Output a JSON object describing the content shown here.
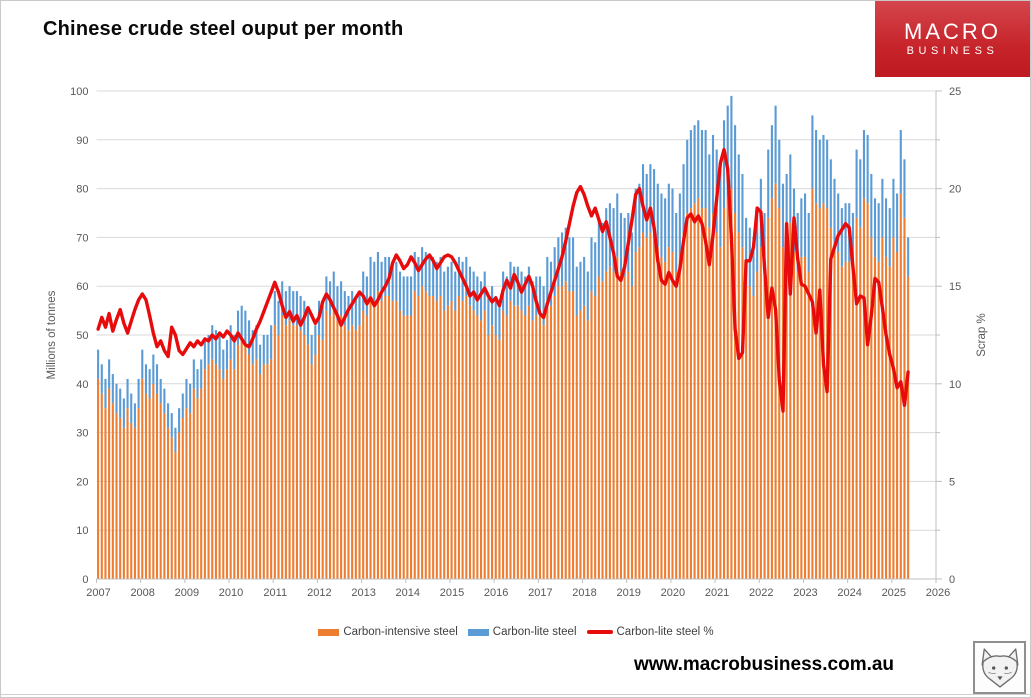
{
  "title": "Chinese crude steel ouput per month",
  "logo": {
    "line1": "MACRO",
    "line2": "BUSINESS",
    "bg_color": "#c6242a"
  },
  "footer": {
    "website": "www.macrobusiness.com.au",
    "mascot_icon": "fox-head"
  },
  "colors": {
    "intensive": "#ED7D31",
    "lite": "#5B9BD5",
    "scrap_line": "#E80B0B",
    "gridline": "#D9D9D9",
    "axis_line": "#BFBFBF",
    "tick_text": "#595959"
  },
  "chart_data": {
    "type": "bar",
    "subtype": "stacked monthly bars with line on secondary axis",
    "title": "Chinese crude steel ouput per month",
    "grid": "horizontal gridlines on",
    "legend_position": "bottom center",
    "left_axis": {
      "label": "Millions of tonnes",
      "range": [
        0,
        100
      ],
      "ticks": [
        0,
        10,
        20,
        30,
        40,
        50,
        60,
        70,
        80,
        90,
        100
      ]
    },
    "right_axis": {
      "label": "Scrap %",
      "range": [
        0,
        25
      ],
      "ticks": [
        0,
        5,
        10,
        15,
        20,
        25
      ],
      "minor_tick_step": 2.5
    },
    "x_axis": {
      "year_labels": [
        2007,
        2008,
        2009,
        2010,
        2011,
        2012,
        2013,
        2014,
        2015,
        2016,
        2017,
        2018,
        2019,
        2020,
        2021,
        2022,
        2023,
        2024,
        2025,
        2026
      ]
    },
    "legend": [
      {
        "label": "Carbon-intensive steel",
        "type": "bar",
        "color_key": "intensive"
      },
      {
        "label": "Carbon-lite steel",
        "type": "bar",
        "color_key": "lite"
      },
      {
        "label": "Carbon-lite steel %",
        "type": "line",
        "color_key": "scrap_line"
      }
    ],
    "start_month": "2007-01",
    "units": {
      "bars": "millions of tonnes (left axis)",
      "scrap_pct": "percent (right axis)"
    },
    "monthly_by_year": [
      {
        "year": 2007,
        "intensive": [
          41,
          38,
          35,
          39,
          36,
          34,
          33,
          31,
          35,
          32,
          31,
          35
        ],
        "lite": [
          6,
          6,
          6,
          6,
          6,
          6,
          6,
          6,
          6,
          6,
          5,
          6
        ],
        "scrap_pct": [
          12.8,
          13.4,
          12.9,
          13.6,
          12.7,
          13.3,
          13.8,
          13.1,
          12.6,
          13.2,
          13.8,
          14.3
        ]
      },
      {
        "year": 2008,
        "intensive": [
          41,
          38,
          37,
          40,
          38,
          36,
          34,
          31,
          29,
          26,
          30,
          33
        ],
        "lite": [
          6,
          6,
          6,
          6,
          6,
          5,
          5,
          5,
          5,
          5,
          5,
          5
        ],
        "scrap_pct": [
          14.6,
          14.3,
          13.5,
          12.6,
          11.9,
          12.2,
          11.7,
          11.4,
          12.9,
          12.5,
          11.7,
          11.5
        ]
      },
      {
        "year": 2009,
        "intensive": [
          35,
          34,
          39,
          37,
          39,
          43,
          44,
          45,
          44,
          43,
          41,
          43
        ],
        "lite": [
          6,
          6,
          6,
          6,
          6,
          6,
          6,
          7,
          7,
          7,
          6,
          6
        ],
        "scrap_pct": [
          11.8,
          12.1,
          11.9,
          12.2,
          12.0,
          12.3,
          12.2,
          12.5,
          12.3,
          12.6,
          12.4,
          12.7
        ]
      },
      {
        "year": 2010,
        "intensive": [
          45,
          43,
          48,
          49,
          48,
          46,
          44,
          45,
          42,
          44,
          44,
          45
        ],
        "lite": [
          7,
          7,
          7,
          7,
          7,
          7,
          7,
          7,
          6,
          6,
          6,
          7
        ],
        "scrap_pct": [
          12.5,
          12.2,
          12.6,
          12.3,
          12.0,
          11.9,
          12.3,
          12.8,
          13.2,
          13.7,
          14.2,
          14.7
        ]
      },
      {
        "year": 2011,
        "intensive": [
          52,
          50,
          54,
          52,
          53,
          52,
          52,
          51,
          50,
          48,
          44,
          46
        ],
        "lite": [
          7,
          7,
          7,
          7,
          7,
          7,
          7,
          7,
          7,
          7,
          6,
          6
        ],
        "scrap_pct": [
          15.2,
          14.7,
          14.0,
          13.4,
          13.7,
          13.2,
          13.5,
          13.0,
          13.4,
          13.9,
          13.5,
          13.1
        ]
      },
      {
        "year": 2012,
        "intensive": [
          50,
          49,
          55,
          54,
          56,
          53,
          54,
          52,
          51,
          52,
          51,
          52
        ],
        "lite": [
          7,
          7,
          7,
          7,
          7,
          7,
          7,
          7,
          7,
          7,
          7,
          7
        ],
        "scrap_pct": [
          13.4,
          14.2,
          14.6,
          14.3,
          13.9,
          13.5,
          13.0,
          13.4,
          13.8,
          14.1,
          14.4,
          14.7
        ]
      },
      {
        "year": 2013,
        "intensive": [
          55,
          54,
          58,
          57,
          59,
          57,
          58,
          58,
          57,
          57,
          55,
          54
        ],
        "lite": [
          8,
          8,
          8,
          8,
          8,
          8,
          8,
          8,
          8,
          8,
          8,
          8
        ],
        "scrap_pct": [
          14.5,
          14.1,
          14.4,
          14.0,
          14.3,
          14.7,
          15.0,
          15.4,
          16.2,
          16.6,
          16.3,
          15.9
        ]
      },
      {
        "year": 2014,
        "intensive": [
          54,
          54,
          59,
          58,
          60,
          59,
          58,
          58,
          57,
          58,
          55,
          56
        ],
        "lite": [
          8,
          8,
          8,
          8,
          8,
          8,
          8,
          8,
          8,
          8,
          8,
          8
        ],
        "scrap_pct": [
          16.1,
          16.5,
          16.2,
          15.8,
          16.1,
          16.4,
          16.6,
          16.3,
          15.9,
          16.2,
          16.5,
          16.6
        ]
      },
      {
        "year": 2015,
        "intensive": [
          57,
          55,
          58,
          57,
          58,
          56,
          55,
          54,
          53,
          55,
          50,
          52
        ],
        "lite": [
          8,
          8,
          8,
          8,
          8,
          8,
          8,
          8,
          8,
          8,
          8,
          8
        ],
        "scrap_pct": [
          16.5,
          16.2,
          15.8,
          15.4,
          15.0,
          14.5,
          14.7,
          14.3,
          14.6,
          14.9,
          14.5,
          14.2
        ]
      },
      {
        "year": 2016,
        "intensive": [
          50,
          49,
          55,
          54,
          57,
          56,
          56,
          55,
          54,
          56,
          53,
          54
        ],
        "lite": [
          8,
          8,
          8,
          8,
          8,
          8,
          8,
          8,
          8,
          8,
          8,
          8
        ],
        "scrap_pct": [
          14.4,
          14.0,
          14.8,
          15.3,
          14.9,
          15.6,
          15.2,
          14.7,
          15.1,
          15.5,
          15.0,
          14.2
        ]
      },
      {
        "year": 2017,
        "intensive": [
          54,
          52,
          57,
          56,
          58,
          60,
          60,
          61,
          59,
          59,
          54,
          55
        ],
        "lite": [
          8,
          8,
          9,
          9,
          10,
          10,
          11,
          11,
          11,
          11,
          10,
          10
        ],
        "scrap_pct": [
          13.6,
          13.4,
          14.1,
          14.7,
          15.3,
          15.9,
          16.5,
          17.3,
          18.2,
          19.1,
          19.8,
          20.1
        ]
      },
      {
        "year": 2018,
        "intensive": [
          56,
          53,
          59,
          58,
          62,
          61,
          63,
          64,
          63,
          66,
          63,
          62
        ],
        "lite": [
          10,
          10,
          11,
          11,
          12,
          12,
          13,
          13,
          13,
          13,
          12,
          12
        ],
        "scrap_pct": [
          19.7,
          19.1,
          18.6,
          19.0,
          18.4,
          17.8,
          18.3,
          17.5,
          16.7,
          15.5,
          15.3,
          16.0
        ]
      },
      {
        "year": 2019,
        "intensive": [
          63,
          60,
          67,
          68,
          71,
          70,
          71,
          70,
          68,
          66,
          65,
          68
        ],
        "lite": [
          12,
          11,
          13,
          13,
          14,
          13,
          14,
          14,
          13,
          13,
          13,
          13
        ],
        "scrap_pct": [
          17.2,
          18.4,
          19.7,
          20.0,
          19.1,
          18.4,
          19.0,
          18.0,
          16.3,
          15.3,
          15.1,
          15.7
        ]
      },
      {
        "year": 2020,
        "intensive": [
          67,
          63,
          66,
          71,
          75,
          76,
          77,
          78,
          76,
          76,
          72,
          75
        ],
        "lite": [
          13,
          12,
          13,
          14,
          15,
          16,
          16,
          16,
          16,
          16,
          15,
          16
        ],
        "scrap_pct": [
          15.3,
          15.0,
          15.9,
          17.3,
          18.5,
          18.7,
          18.3,
          18.6,
          18.2,
          17.3,
          16.1,
          17.6
        ]
      },
      {
        "year": 2021,
        "intensive": [
          71,
          68,
          76,
          78,
          80,
          75,
          71,
          68,
          61,
          60,
          58,
          63
        ],
        "lite": [
          17,
          17,
          18,
          19,
          19,
          18,
          16,
          15,
          13,
          12,
          12,
          12
        ],
        "scrap_pct": [
          19.5,
          21.3,
          22.0,
          21.0,
          17.5,
          12.8,
          11.3,
          11.6,
          16.3,
          16.3,
          17.0,
          19.0
        ]
      },
      {
        "year": 2022,
        "intensive": [
          68,
          62,
          74,
          78,
          81,
          76,
          68,
          70,
          73,
          67,
          63,
          66
        ],
        "lite": [
          14,
          13,
          14,
          15,
          16,
          14,
          13,
          13,
          14,
          13,
          12,
          12
        ],
        "scrap_pct": [
          18.8,
          16.0,
          13.4,
          14.9,
          13.8,
          10.2,
          8.6,
          18.2,
          14.6,
          18.5,
          16.4,
          15.1
        ]
      },
      {
        "year": 2023,
        "intensive": [
          66,
          63,
          80,
          77,
          76,
          77,
          76,
          72,
          69,
          67,
          64,
          65
        ],
        "lite": [
          13,
          12,
          15,
          15,
          14,
          14,
          14,
          14,
          13,
          12,
          12,
          12
        ],
        "scrap_pct": [
          15.0,
          14.6,
          14.2,
          12.6,
          14.8,
          11.0,
          9.6,
          16.4,
          17.0,
          17.6,
          17.9,
          18.2
        ]
      },
      {
        "year": 2024,
        "intensive": [
          65,
          63,
          74,
          72,
          78,
          77,
          70,
          66,
          65,
          70,
          66,
          64
        ],
        "lite": [
          12,
          12,
          14,
          14,
          14,
          14,
          13,
          12,
          12,
          12,
          12,
          12
        ],
        "scrap_pct": [
          18.0,
          16.0,
          14.1,
          14.5,
          14.4,
          12.0,
          13.5,
          15.4,
          15.2,
          13.9,
          12.5,
          11.5
        ]
      },
      {
        "year": 2025,
        "intensive": [
          70,
          67,
          79,
          74,
          62
        ],
        "lite": [
          12,
          12,
          13,
          12,
          8
        ],
        "scrap_pct": [
          10.8,
          9.8,
          10.1,
          8.9,
          10.6
        ]
      }
    ]
  }
}
